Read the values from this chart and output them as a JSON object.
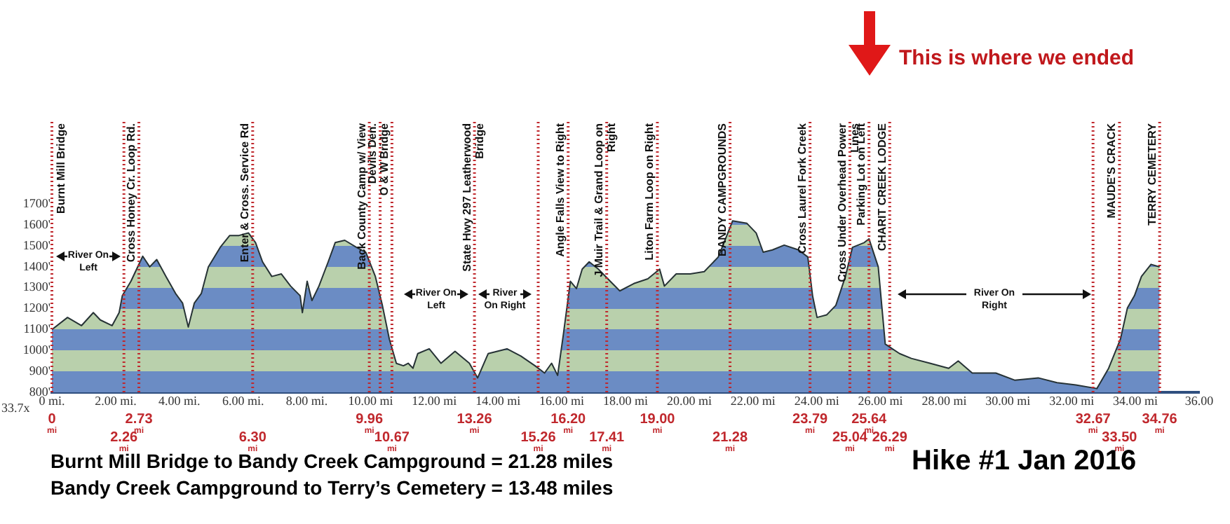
{
  "chart_data": {
    "type": "area",
    "title": "Hike #1 Jan 2016",
    "x": [
      0,
      0.49,
      0.93,
      1.3,
      1.52,
      1.89,
      2.11,
      2.21,
      2.48,
      2.85,
      3.07,
      3.29,
      3.58,
      3.88,
      4.1,
      4.28,
      4.47,
      4.69,
      4.91,
      5.28,
      5.58,
      5.87,
      6.17,
      6.39,
      6.61,
      6.9,
      7.2,
      7.49,
      7.79,
      7.86,
      8.01,
      8.16,
      8.38,
      8.67,
      8.89,
      9.19,
      9.56,
      9.85,
      10.15,
      10.37,
      10.59,
      10.81,
      11.03,
      11.18,
      11.33,
      11.48,
      11.84,
      12.21,
      12.65,
      13.1,
      13.36,
      13.69,
      14.28,
      14.72,
      15.16,
      15.46,
      15.68,
      15.87,
      16.05,
      16.27,
      16.46,
      16.64,
      16.86,
      17.15,
      17.52,
      17.82,
      18.26,
      18.7,
      19.07,
      19.22,
      19.59,
      20.03,
      20.47,
      20.91,
      21.21,
      21.36,
      21.81,
      22.1,
      22.32,
      22.61,
      22.98,
      23.43,
      23.72,
      23.87,
      24.01,
      24.31,
      24.6,
      24.9,
      25.12,
      25.49,
      25.64,
      25.93,
      26.15,
      26.6,
      26.97,
      27.55,
      28.14,
      28.44,
      28.88,
      29.62,
      30.21,
      30.95,
      31.54,
      32.13,
      32.79,
      33.16,
      33.53,
      33.75,
      33.97,
      34.19,
      34.49,
      34.76
    ],
    "series": [
      {
        "color": "#6b8cc4",
        "values": [
          1100,
          1158,
          1119,
          1181,
          1146,
          1119,
          1181,
          1262,
          1331,
          1451,
          1400,
          1435,
          1354,
          1273,
          1227,
          1112,
          1227,
          1273,
          1400,
          1493,
          1550,
          1550,
          1562,
          1516,
          1424,
          1354,
          1366,
          1308,
          1262,
          1181,
          1331,
          1239,
          1308,
          1424,
          1516,
          1527,
          1493,
          1470,
          1354,
          1216,
          1054,
          938,
          927,
          939,
          915,
          985,
          1008,
          939,
          996,
          939,
          869,
          985,
          1008,
          973,
          927,
          892,
          939,
          881,
          1077,
          1331,
          1296,
          1389,
          1424,
          1389,
          1331,
          1285,
          1320,
          1343,
          1389,
          1308,
          1366,
          1366,
          1377,
          1447,
          1562,
          1620,
          1608,
          1562,
          1470,
          1481,
          1504,
          1481,
          1447,
          1262,
          1158,
          1170,
          1216,
          1354,
          1493,
          1516,
          1534,
          1400,
          1031,
          985,
          962,
          939,
          915,
          950,
          892,
          892,
          858,
          869,
          846,
          835,
          818,
          915,
          1054,
          1204,
          1262,
          1354,
          1412,
          1400
        ]
      }
    ],
    "xlim": [
      0,
      36
    ],
    "ylim": [
      800,
      2100
    ],
    "xticks": [
      {
        "value": 0,
        "label": "0 mi."
      },
      {
        "value": 2,
        "label": "2.00 mi."
      },
      {
        "value": 4,
        "label": "4.00 mi."
      },
      {
        "value": 6,
        "label": "6.00 mi."
      },
      {
        "value": 8,
        "label": "8.00 mi."
      },
      {
        "value": 10,
        "label": "10.00 mi"
      },
      {
        "value": 12,
        "label": "12.00 mi"
      },
      {
        "value": 14,
        "label": "14.00 mi"
      },
      {
        "value": 16,
        "label": "16.00 mi"
      },
      {
        "value": 18,
        "label": "18.00 mi"
      },
      {
        "value": 20,
        "label": "20.00 mi"
      },
      {
        "value": 22,
        "label": "22.00 mi"
      },
      {
        "value": 24,
        "label": "24.00 mi"
      },
      {
        "value": 26,
        "label": "26.00 mi"
      },
      {
        "value": 28,
        "label": "28.00 mi"
      },
      {
        "value": 30,
        "label": "30.00 mi"
      },
      {
        "value": 32,
        "label": "32.00 mi"
      },
      {
        "value": 34,
        "label": "34.00 mi"
      },
      {
        "value": 36,
        "label": "36.00"
      }
    ],
    "yticks": [
      {
        "value": 800,
        "label": "800'"
      },
      {
        "value": 900,
        "label": "900'"
      },
      {
        "value": 1000,
        "label": "1000'"
      },
      {
        "value": 1100,
        "label": "1100'"
      },
      {
        "value": 1200,
        "label": "1200'"
      },
      {
        "value": 1300,
        "label": "1300'"
      },
      {
        "value": 1400,
        "label": "1400'"
      },
      {
        "value": 1500,
        "label": "1500'"
      },
      {
        "value": 1600,
        "label": "1600'"
      },
      {
        "value": 1700,
        "label": "1700'"
      }
    ],
    "grid": false,
    "legend": false,
    "line_style": "solid",
    "marker": "none",
    "ref_lines": [
      {
        "axis": "x",
        "value": 0,
        "label": "Burnt Mill Bridge"
      },
      {
        "axis": "x",
        "value": 2.26,
        "label": null
      },
      {
        "axis": "x",
        "value": 2.73,
        "label": "Cross Honey Cr. Loop Rd."
      },
      {
        "axis": "x",
        "value": 6.3,
        "label": "Enter & Cross. Service Rd"
      },
      {
        "axis": "x",
        "value": 9.96,
        "label": "Back County Camp w/ View"
      },
      {
        "axis": "x",
        "value": 10.3,
        "label": "Devils Den."
      },
      {
        "axis": "x",
        "value": 10.67,
        "label": "O & W Bridge"
      },
      {
        "axis": "x",
        "value": 13.26,
        "label": "State Hwy 297 Leatherwood Bridge"
      },
      {
        "axis": "x",
        "value": 15.26,
        "label": null
      },
      {
        "axis": "x",
        "value": 16.2,
        "label": "Angle Falls View to Right"
      },
      {
        "axis": "x",
        "value": 17.41,
        "label": "J Muir Trail & Grand Loop on Right"
      },
      {
        "axis": "x",
        "value": 19,
        "label": "Liton Farm Loop on Right"
      },
      {
        "axis": "x",
        "value": 21.28,
        "label": "BANDY CAMPGROUNDS"
      },
      {
        "axis": "x",
        "value": 23.79,
        "label": "Cross Laurel Fork Creek"
      },
      {
        "axis": "x",
        "value": 25.04,
        "label": "Cross Under Overhead Power Lines"
      },
      {
        "axis": "x",
        "value": 25.64,
        "label": "Parking Lot on Left"
      },
      {
        "axis": "x",
        "value": 26.29,
        "label": "CHARIT CREEK LODGE"
      },
      {
        "axis": "x",
        "value": 32.67,
        "label": null
      },
      {
        "axis": "x",
        "value": 33.5,
        "label": "MAUDE'S CRACK"
      },
      {
        "axis": "x",
        "value": 34.76,
        "label": "TERRY CEMETERY"
      }
    ],
    "annotations": [
      "This is where we ended",
      "Burnt Mill Bridge to Bandy Creek Campground = 21.28 miles",
      "Bandy Creek Campground to Terry’s Cemetery = 13.48 miles",
      "33.7x",
      "River On Left",
      "River On Left",
      "River On Right",
      "River On Right",
      {
        "text": "0 mi",
        "x": 0,
        "y": 800
      },
      {
        "text": "2.26 mi",
        "x": 2.26,
        "y": 800
      },
      {
        "text": "2.73 mi",
        "x": 2.73,
        "y": 800
      },
      {
        "text": "6.30 mi",
        "x": 6.3,
        "y": 800
      },
      {
        "text": "9.96 mi",
        "x": 9.96,
        "y": 800
      },
      {
        "text": "10.67 mi",
        "x": 10.67,
        "y": 800
      },
      {
        "text": "13.26 mi",
        "x": 13.26,
        "y": 800
      },
      {
        "text": "15.26 mi",
        "x": 15.26,
        "y": 800
      },
      {
        "text": "16.20 mi",
        "x": 16.2,
        "y": 800
      },
      {
        "text": "17.41 mi",
        "x": 17.41,
        "y": 800
      },
      {
        "text": "19.00 mi",
        "x": 19,
        "y": 800
      },
      {
        "text": "21.28 mi",
        "x": 21.28,
        "y": 800
      },
      {
        "text": "23.79 mi",
        "x": 23.79,
        "y": 800
      },
      {
        "text": "25.04 mi",
        "x": 25.04,
        "y": 800
      },
      {
        "text": "25.64 mi",
        "x": 25.64,
        "y": 800
      },
      {
        "text": "26.29 mi",
        "x": 26.29,
        "y": 800
      },
      {
        "text": "32.67 mi",
        "x": 32.67,
        "y": 800
      },
      {
        "text": "33.50 mi",
        "x": 33.5,
        "y": 800
      },
      {
        "text": "34.76 mi",
        "x": 34.76,
        "y": 800
      }
    ]
  }
}
